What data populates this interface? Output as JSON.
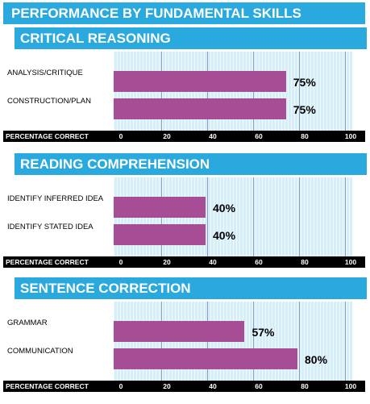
{
  "title": "PERFORMANCE BY FUNDAMENTAL SKILLS",
  "colors": {
    "header_bg": "#2aa9df",
    "bar": "#a64d96",
    "plot_bg": "#d6eef8",
    "axis_bg": "#000000"
  },
  "chart_data": [
    {
      "type": "bar",
      "orientation": "horizontal",
      "title": "CRITICAL REASONING",
      "categories": [
        "ANALYSIS/CRITIQUE",
        "CONSTRUCTION/PLAN"
      ],
      "values": [
        75,
        75
      ],
      "value_labels": [
        "75%",
        "75%"
      ],
      "xlabel": "PERCENTAGE CORRECT",
      "xlim": [
        0,
        100
      ],
      "ticks": [
        "0",
        "20",
        "40",
        "60",
        "80",
        "100"
      ]
    },
    {
      "type": "bar",
      "orientation": "horizontal",
      "title": "READING COMPREHENSION",
      "categories": [
        "IDENTIFY INFERRED IDEA",
        "IDENTIFY STATED IDEA"
      ],
      "values": [
        40,
        40
      ],
      "value_labels": [
        "40%",
        "40%"
      ],
      "xlabel": "PERCENTAGE CORRECT",
      "xlim": [
        0,
        100
      ],
      "ticks": [
        "0",
        "20",
        "40",
        "60",
        "80",
        "100"
      ]
    },
    {
      "type": "bar",
      "orientation": "horizontal",
      "title": "SENTENCE CORRECTION",
      "categories": [
        "GRAMMAR",
        "COMMUNICATION"
      ],
      "values": [
        57,
        80
      ],
      "value_labels": [
        "57%",
        "80%"
      ],
      "xlabel": "PERCENTAGE CORRECT",
      "xlim": [
        0,
        100
      ],
      "ticks": [
        "0",
        "20",
        "40",
        "60",
        "80",
        "100"
      ]
    }
  ]
}
